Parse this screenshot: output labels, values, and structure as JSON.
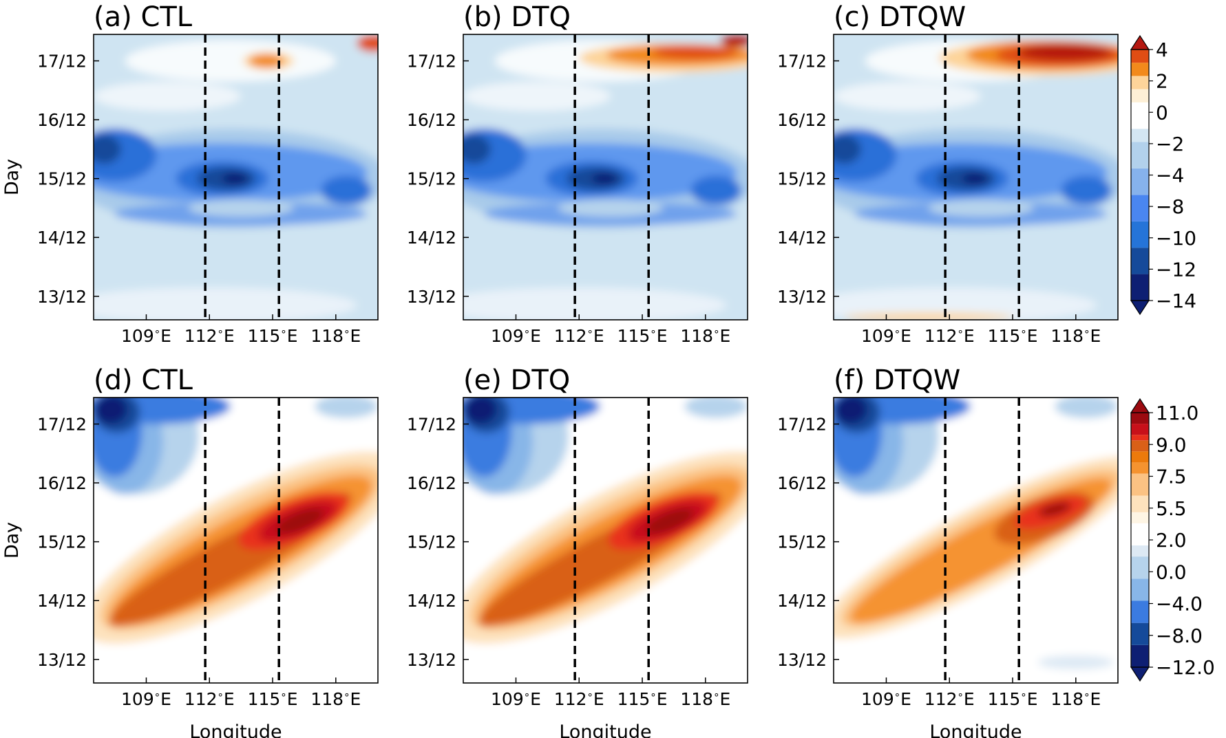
{
  "chart_data": [
    {
      "type": "heatmap",
      "title": "(a) CTL",
      "xlabel": "",
      "ylabel": "Day",
      "xticks": [
        "109$^\\circ$E",
        "112$^\\circ$E",
        "115$^\\circ$E",
        "118$^\\circ$E"
      ],
      "yticks": [
        "13/12",
        "14/12",
        "15/12",
        "16/12",
        "17/12"
      ],
      "xlim": [
        106.5,
        120
      ],
      "ylim": [
        12.6,
        17.45
      ],
      "dashed_lines_x": [
        111.8,
        115.3
      ],
      "row": "top"
    },
    {
      "type": "heatmap",
      "title": "(b) DTQ",
      "xlabel": "",
      "ylabel": "",
      "xticks": [
        "109$^\\circ$E",
        "112$^\\circ$E",
        "115$^\\circ$E",
        "118$^\\circ$E"
      ],
      "yticks": [
        "13/12",
        "14/12",
        "15/12",
        "16/12",
        "17/12"
      ],
      "xlim": [
        106.5,
        120
      ],
      "ylim": [
        12.6,
        17.45
      ],
      "dashed_lines_x": [
        111.8,
        115.3
      ],
      "row": "top"
    },
    {
      "type": "heatmap",
      "title": "(c) DTQW",
      "xlabel": "",
      "ylabel": "",
      "xticks": [
        "109$^\\circ$E",
        "112$^\\circ$E",
        "115$^\\circ$E",
        "118$^\\circ$E"
      ],
      "yticks": [
        "13/12",
        "14/12",
        "15/12",
        "16/12",
        "17/12"
      ],
      "xlim": [
        106.5,
        120
      ],
      "ylim": [
        12.6,
        17.45
      ],
      "dashed_lines_x": [
        111.8,
        115.3
      ],
      "row": "top"
    },
    {
      "type": "heatmap",
      "title": "(d) CTL",
      "xlabel": "Longitude",
      "ylabel": "Day",
      "xticks": [
        "109$^\\circ$E",
        "112$^\\circ$E",
        "115$^\\circ$E",
        "118$^\\circ$E"
      ],
      "yticks": [
        "13/12",
        "14/12",
        "15/12",
        "16/12",
        "17/12"
      ],
      "xlim": [
        106.5,
        120
      ],
      "ylim": [
        12.6,
        17.45
      ],
      "dashed_lines_x": [
        111.8,
        115.3
      ],
      "row": "bottom"
    },
    {
      "type": "heatmap",
      "title": "(e) DTQ",
      "xlabel": "Longitude",
      "ylabel": "",
      "xticks": [
        "109$^\\circ$E",
        "112$^\\circ$E",
        "115$^\\circ$E",
        "118$^\\circ$E"
      ],
      "yticks": [
        "13/12",
        "14/12",
        "15/12",
        "16/12",
        "17/12"
      ],
      "xlim": [
        106.5,
        120
      ],
      "ylim": [
        12.6,
        17.45
      ],
      "dashed_lines_x": [
        111.8,
        115.3
      ],
      "row": "bottom"
    },
    {
      "type": "heatmap",
      "title": "(f) DTQW",
      "xlabel": "Longitude",
      "ylabel": "",
      "xticks": [
        "109$^\\circ$E",
        "112$^\\circ$E",
        "115$^\\circ$E",
        "118$^\\circ$E"
      ],
      "yticks": [
        "13/12",
        "14/12",
        "15/12",
        "16/12",
        "17/12"
      ],
      "xlim": [
        106.5,
        120
      ],
      "ylim": [
        12.6,
        17.45
      ],
      "dashed_lines_x": [
        111.8,
        115.3
      ],
      "row": "bottom"
    }
  ],
  "colorbars": [
    {
      "row": "top",
      "min": -14,
      "max": 5,
      "labels": [
        "4",
        "2",
        "0",
        "−2",
        "−4",
        "−8",
        "−10",
        "−12",
        "−14"
      ],
      "label_values": [
        4,
        2,
        0,
        -2,
        -4,
        -8,
        -10,
        -12,
        -14
      ],
      "levels": [
        -14,
        -12,
        -10,
        -8,
        -6,
        -4,
        -2,
        -1,
        1,
        2,
        3,
        4,
        5
      ],
      "colors": [
        "#0e1f73",
        "#154a9a",
        "#2574d8",
        "#4a86f0",
        "#86b2ec",
        "#b2d1ec",
        "#d3e6f3",
        "#ffffff",
        "#fdefd6",
        "#fdd49a",
        "#f28a1c",
        "#e04d14",
        "#b51811"
      ]
    },
    {
      "row": "bottom",
      "min": -12,
      "max": 11,
      "labels": [
        "11.0",
        "9.0",
        "7.5",
        "5.5",
        "2.0",
        "0.0",
        "−4.0",
        "−8.0",
        "−12.0"
      ],
      "label_values": [
        11,
        9,
        7.5,
        5.5,
        2,
        0,
        -4,
        -8,
        -12
      ],
      "levels": [
        -12,
        -10,
        -8,
        -6,
        -4,
        -2,
        -1,
        1,
        2,
        3.5,
        5.5,
        6.5,
        7.5,
        8.5,
        9,
        10,
        11
      ],
      "colors": [
        "#0e1f73",
        "#154a9a",
        "#3b7be0",
        "#88b6e8",
        "#b6d3ec",
        "#dde9f4",
        "#ffffff",
        "#fef5e4",
        "#fde2bd",
        "#fbc283",
        "#f59330",
        "#ec7a0c",
        "#d96018",
        "#e8301c",
        "#c8101a",
        "#9c0a10"
      ]
    }
  ]
}
